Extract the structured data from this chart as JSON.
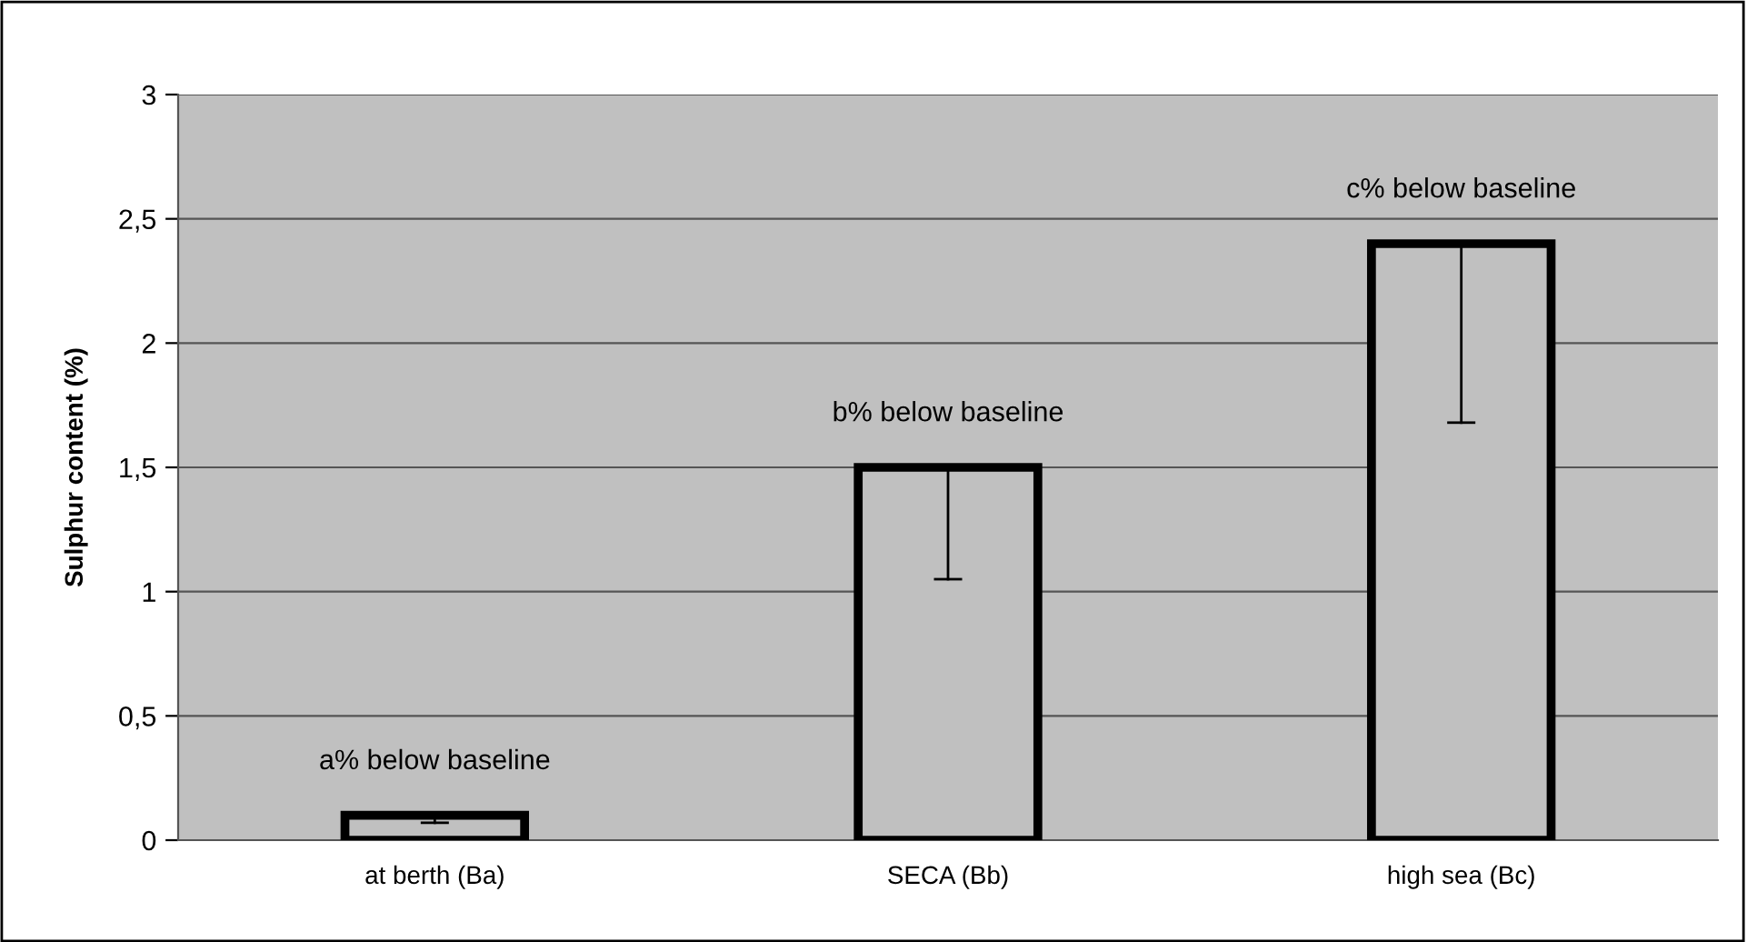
{
  "chart_data": {
    "type": "bar",
    "ylabel": "Sulphur content (%)",
    "categories": [
      "at berth (Ba)",
      "SECA (Bb)",
      "high sea (Bc)"
    ],
    "values": [
      0.1,
      1.5,
      2.4
    ],
    "errors": [
      [
        0.07,
        0.1
      ],
      [
        1.05,
        1.5
      ],
      [
        1.68,
        2.4
      ]
    ],
    "color": "#c0c0c0",
    "ylim": [
      0,
      3
    ],
    "yticks": [
      0,
      {
        "value": 0.5,
        "label": "0,5"
      },
      1,
      {
        "value": 1.5,
        "label": "1,5"
      },
      2,
      {
        "value": 2.5,
        "label": "2,5"
      },
      3
    ],
    "grid": "y",
    "legend": false,
    "annotations": [
      {
        "text": "a% below baseline",
        "x": "at berth (Ba)",
        "y": 0.1
      },
      {
        "text": "b% below baseline",
        "x": "SECA (Bb)",
        "y": 1.5
      },
      {
        "text": "c% below baseline",
        "x": "high sea (Bc)",
        "y": 2.4
      }
    ]
  }
}
